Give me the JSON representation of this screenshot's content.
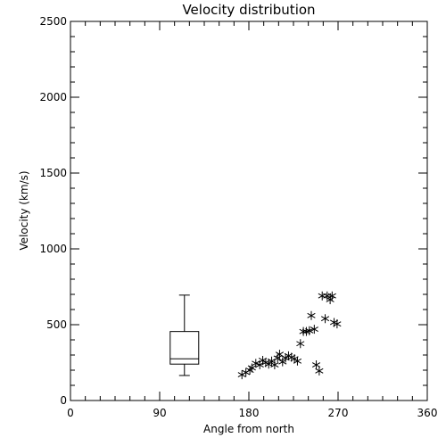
{
  "chart_data": {
    "type": "scatter",
    "title": "Velocity distribution",
    "xlabel": "Angle from north",
    "ylabel": "Velocity (km/s)",
    "xlim": [
      0,
      360
    ],
    "ylim": [
      0,
      2500
    ],
    "xticks": [
      0,
      90,
      180,
      270,
      360
    ],
    "yticks": [
      0,
      500,
      1000,
      1500,
      2000,
      2500
    ],
    "x_minor_step": 15,
    "y_minor_step": 100,
    "grid": false,
    "marker": "asterisk",
    "boxplot": {
      "x": 115,
      "min": 165,
      "q1": 240,
      "median": 275,
      "q3": 455,
      "max": 695
    },
    "points": [
      {
        "x": 173,
        "y": 170
      },
      {
        "x": 177,
        "y": 185
      },
      {
        "x": 181,
        "y": 200
      },
      {
        "x": 183,
        "y": 215
      },
      {
        "x": 187,
        "y": 245
      },
      {
        "x": 191,
        "y": 235
      },
      {
        "x": 194,
        "y": 265
      },
      {
        "x": 197,
        "y": 250
      },
      {
        "x": 200,
        "y": 240
      },
      {
        "x": 203,
        "y": 260
      },
      {
        "x": 206,
        "y": 235
      },
      {
        "x": 209,
        "y": 280
      },
      {
        "x": 211,
        "y": 305
      },
      {
        "x": 214,
        "y": 255
      },
      {
        "x": 217,
        "y": 280
      },
      {
        "x": 220,
        "y": 295
      },
      {
        "x": 223,
        "y": 285
      },
      {
        "x": 226,
        "y": 275
      },
      {
        "x": 229,
        "y": 260
      },
      {
        "x": 232,
        "y": 375
      },
      {
        "x": 235,
        "y": 455
      },
      {
        "x": 238,
        "y": 455
      },
      {
        "x": 241,
        "y": 460
      },
      {
        "x": 243,
        "y": 560
      },
      {
        "x": 246,
        "y": 470
      },
      {
        "x": 248,
        "y": 235
      },
      {
        "x": 251,
        "y": 195
      },
      {
        "x": 254,
        "y": 690
      },
      {
        "x": 257,
        "y": 540
      },
      {
        "x": 259,
        "y": 690
      },
      {
        "x": 262,
        "y": 665
      },
      {
        "x": 264,
        "y": 690
      },
      {
        "x": 266,
        "y": 515
      },
      {
        "x": 269,
        "y": 505
      }
    ]
  }
}
